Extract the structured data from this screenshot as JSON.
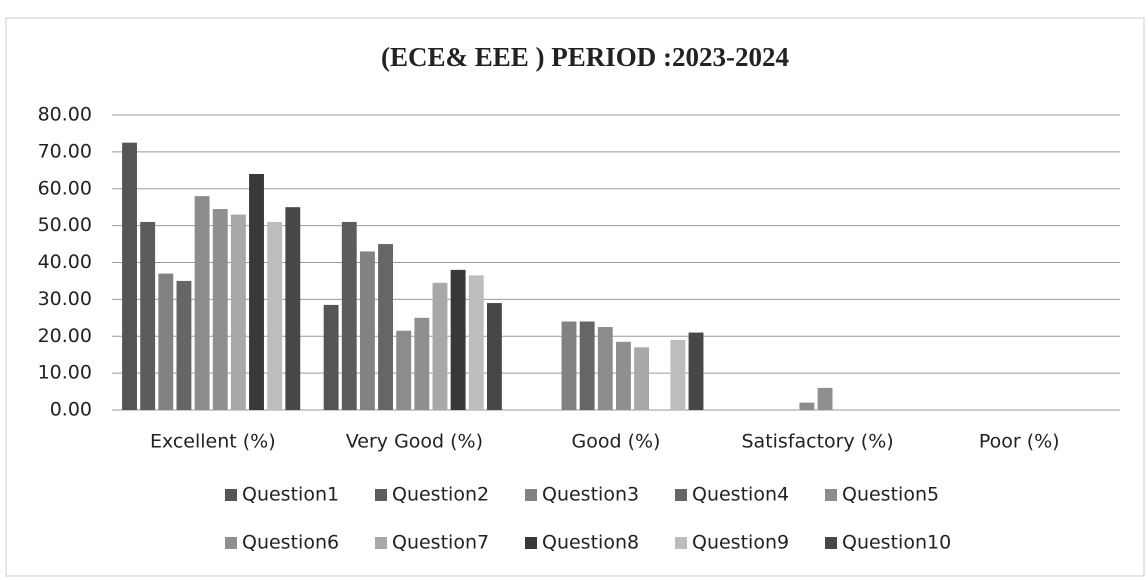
{
  "chart_data": {
    "type": "bar",
    "title": "(ECE& EEE ) PERIOD :2023-2024",
    "categories": [
      "Excellent (%)",
      "Very Good (%)",
      "Good (%)",
      "Satisfactory (%)",
      "Poor (%)"
    ],
    "series": [
      {
        "name": "Question1",
        "color": "#555555",
        "values": [
          72.5,
          28.5,
          0,
          0,
          0
        ]
      },
      {
        "name": "Question2",
        "color": "#5c5c5c",
        "values": [
          51,
          51,
          0,
          0,
          0
        ]
      },
      {
        "name": "Question3",
        "color": "#828282",
        "values": [
          37,
          43,
          24,
          0,
          0
        ]
      },
      {
        "name": "Question4",
        "color": "#666666",
        "values": [
          35,
          45,
          24,
          0,
          0
        ]
      },
      {
        "name": "Question5",
        "color": "#8c8c8c",
        "values": [
          58,
          21.5,
          22.5,
          2,
          0
        ]
      },
      {
        "name": "Question6",
        "color": "#8f8f8f",
        "values": [
          54.5,
          25,
          18.5,
          6,
          0
        ]
      },
      {
        "name": "Question7",
        "color": "#a8a8a8",
        "values": [
          53,
          34.5,
          17,
          0,
          0
        ]
      },
      {
        "name": "Question8",
        "color": "#383838",
        "values": [
          64,
          38,
          0,
          0,
          0
        ]
      },
      {
        "name": "Question9",
        "color": "#bdbdbd",
        "values": [
          51,
          36.5,
          19,
          0,
          0
        ]
      },
      {
        "name": "Question10",
        "color": "#474747",
        "values": [
          55,
          29,
          21,
          0,
          0
        ]
      }
    ],
    "ylim": [
      0,
      80
    ],
    "yticks": [
      {
        "value": 0,
        "label": "0.00"
      },
      {
        "value": 10,
        "label": "10.00"
      },
      {
        "value": 20,
        "label": "20.00"
      },
      {
        "value": 30,
        "label": "30.00"
      },
      {
        "value": 40,
        "label": "40.00"
      },
      {
        "value": 50,
        "label": "50.00"
      },
      {
        "value": 60,
        "label": "60.00"
      },
      {
        "value": 70,
        "label": "70.00"
      },
      {
        "value": 80,
        "label": "80.00"
      }
    ],
    "grid": true,
    "legend": "bottom"
  }
}
